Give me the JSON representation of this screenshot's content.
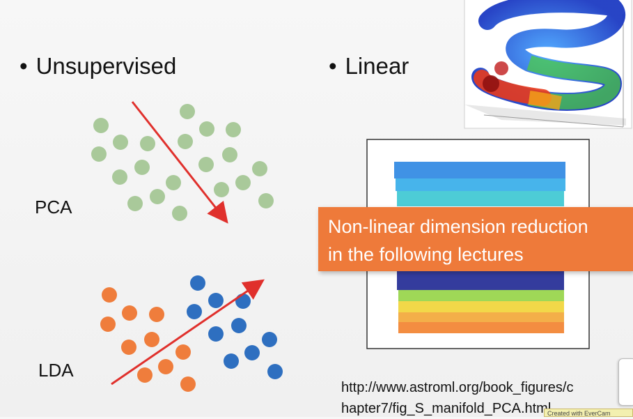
{
  "slide": {
    "bullets": {
      "unsupervised": "Unsupervised",
      "linear": "Linear"
    },
    "labels": {
      "pca": "PCA",
      "lda": "LDA"
    },
    "callout": {
      "line1": "Non-linear dimension reduction",
      "line2": "in the following lectures"
    },
    "url": {
      "line1": "http://www.astroml.org/book_figures/c",
      "line2": "hapter7/fig_S_manifold_PCA.html"
    },
    "badge": "Created with EverCam",
    "colors": {
      "pca_dot": "#a9c99a",
      "lda_orange": "#ef7d3c",
      "lda_blue": "#2e6fc0",
      "arrow": "#e0302c",
      "callout": "#ee7a3a"
    }
  }
}
